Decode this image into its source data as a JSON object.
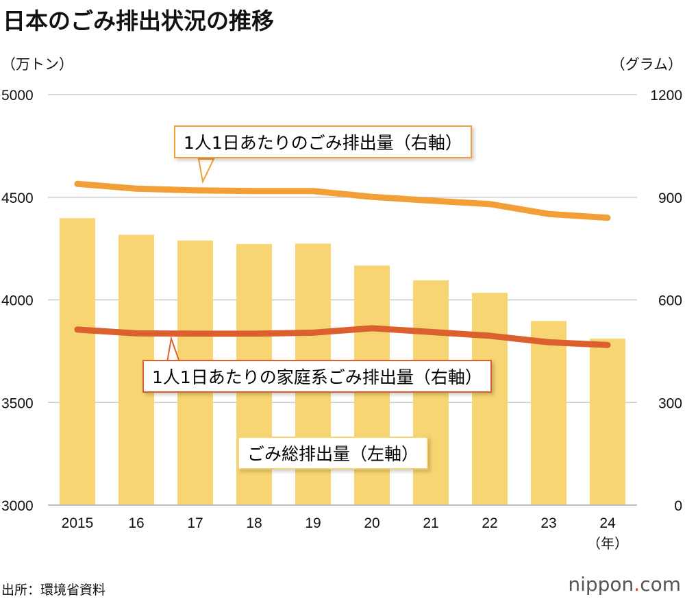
{
  "title": "日本のごみ排出状況の推移",
  "left_unit": "（万トン）",
  "right_unit": "（グラム）",
  "source": "出所：環境省資料",
  "logo": {
    "text": "nippon",
    "dot": ".",
    "suffix": "com"
  },
  "colors": {
    "bar": "#f6d572",
    "total_line": "#f29f38",
    "household_line": "#dc5f2e",
    "grid": "#cccccc"
  },
  "chart_data": {
    "type": "bar+line",
    "title": "日本のごみ排出状況の推移",
    "categories": [
      "2015",
      "16",
      "17",
      "18",
      "19",
      "20",
      "21",
      "22",
      "23",
      "24"
    ],
    "x_unit": "（年）",
    "y_left": {
      "label": "（万トン）",
      "range": [
        3000,
        5000
      ],
      "ticks": [
        "3000",
        "3500",
        "4000",
        "4500",
        "5000"
      ]
    },
    "y_right": {
      "label": "（グラム）",
      "range": [
        0,
        1200
      ],
      "ticks": [
        "0",
        "300",
        "600",
        "900",
        "1200"
      ]
    },
    "grid": true,
    "series": [
      {
        "name": "ごみ総排出量（左軸）",
        "type": "bar",
        "axis": "left",
        "values": [
          4398,
          4317,
          4289,
          4272,
          4274,
          4167,
          4095,
          4034,
          3897,
          3811
        ]
      },
      {
        "name": "1人1日あたりのごみ排出量（右軸）",
        "type": "line",
        "axis": "right",
        "values": [
          939,
          925,
          920,
          918,
          918,
          901,
          890,
          880,
          851,
          840
        ]
      },
      {
        "name": "1人1日あたりの家庭系ごみ排出量（右軸）",
        "type": "line",
        "axis": "right",
        "values": [
          513,
          502,
          501,
          501,
          504,
          517,
          506,
          495,
          476,
          468
        ]
      }
    ]
  }
}
